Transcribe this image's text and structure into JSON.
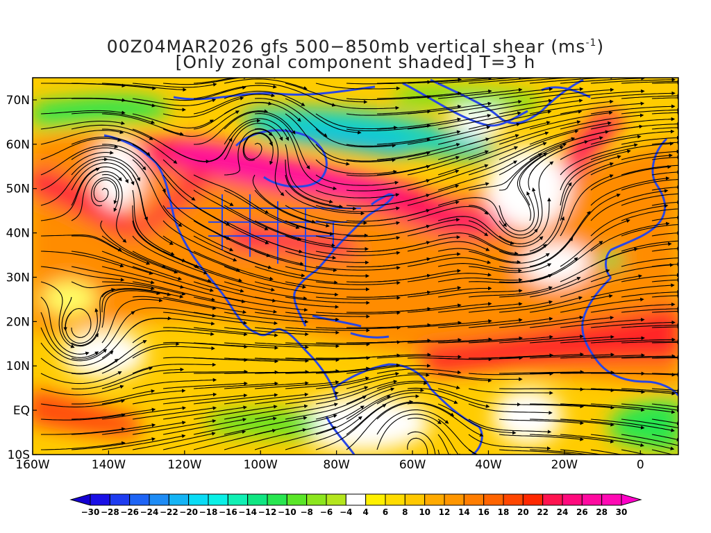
{
  "title": {
    "line1_prefix": "00Z04MAR2026 gfs 500−850mb vertical shear (ms",
    "line1_sup": "-1",
    "line1_suffix": ")",
    "line2": "[Only zonal component shaded] T=3 h"
  },
  "axes": {
    "lat_labels": [
      "70N",
      "60N",
      "50N",
      "40N",
      "30N",
      "20N",
      "10N",
      "EQ",
      "10S"
    ],
    "lat_values": [
      70,
      60,
      50,
      40,
      30,
      20,
      10,
      0,
      -10
    ],
    "lon_labels": [
      "160W",
      "140W",
      "120W",
      "100W",
      "80W",
      "60W",
      "40W",
      "20W",
      "0"
    ],
    "lon_values": [
      -160,
      -140,
      -120,
      -100,
      -80,
      -60,
      -40,
      -20,
      0
    ],
    "lon_range": [
      -160,
      10
    ],
    "lat_range": [
      -10,
      75
    ]
  },
  "colorbar": {
    "labels": [
      "-30",
      "-28",
      "-26",
      "-24",
      "-22",
      "-20",
      "-18",
      "-16",
      "-14",
      "-12",
      "-10",
      "-8",
      "-6",
      "-4",
      "4",
      "6",
      "8",
      "10",
      "12",
      "14",
      "16",
      "18",
      "20",
      "22",
      "24",
      "26",
      "28",
      "30"
    ],
    "colors": [
      "#1a10e6",
      "#1e3cf0",
      "#1e64f5",
      "#1e8cf5",
      "#14b4f5",
      "#0adcf5",
      "#0af0e6",
      "#10f0b4",
      "#10e682",
      "#28e650",
      "#5ae628",
      "#8ce61e",
      "#b4e61e",
      "#ffffff",
      "#fff000",
      "#ffdc00",
      "#ffc800",
      "#ffaa00",
      "#ff9600",
      "#ff7d00",
      "#ff6400",
      "#ff4600",
      "#ff2800",
      "#ff1450",
      "#ff0a7d",
      "#ff0aa0",
      "#ff0ab4"
    ],
    "left_arrow_color": "#1400d2",
    "right_arrow_color": "#ff00c8"
  },
  "map": {
    "coastline_color": "#2846e6",
    "streamline_color": "#000000"
  }
}
